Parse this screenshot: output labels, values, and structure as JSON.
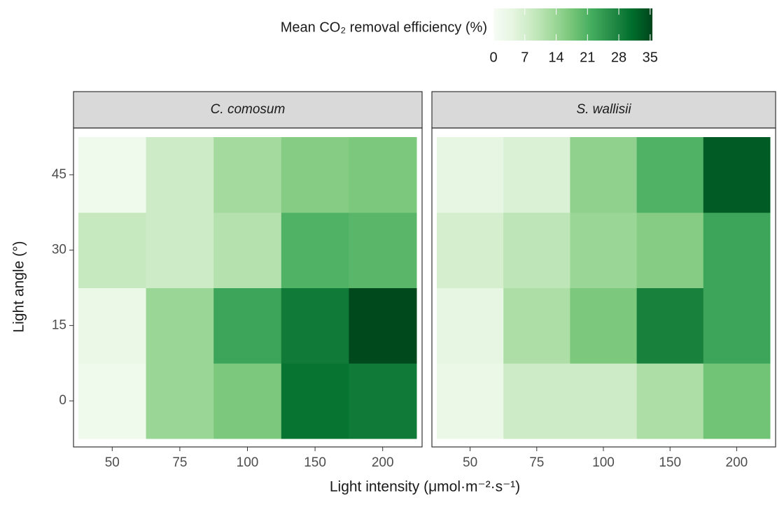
{
  "chart_data": {
    "type": "heatmap",
    "legend_title": "Mean CO₂ removal efficiency (%)",
    "x_label": "Light intensity (μmol·m⁻²·s⁻¹)",
    "y_label": "Light angle (°)",
    "x_categories": [
      "50",
      "75",
      "100",
      "150",
      "200"
    ],
    "y_categories": [
      "0",
      "15",
      "30",
      "45"
    ],
    "clim": [
      0,
      35.5
    ],
    "cticks": [
      0,
      7,
      14,
      21,
      28,
      35
    ],
    "colorscale": [
      "#f7fcf5",
      "#e5f5e0",
      "#c7e9c0",
      "#a1d99b",
      "#74c476",
      "#41ab5d",
      "#238b45",
      "#006d2c",
      "#00441b"
    ],
    "facets": [
      {
        "name": "C. comosum",
        "values": [
          [
            2,
            14,
            17,
            30,
            29
          ],
          [
            3,
            14,
            23,
            29,
            35
          ],
          [
            9,
            8,
            11,
            21,
            20
          ],
          [
            2,
            8,
            13,
            16,
            17
          ]
        ]
      },
      {
        "name": "S. wallisii",
        "values": [
          [
            3,
            8,
            8,
            12,
            18
          ],
          [
            4,
            12,
            17,
            28,
            23
          ],
          [
            7,
            10,
            14,
            16,
            23
          ],
          [
            4,
            6,
            15,
            21,
            33
          ]
        ]
      }
    ]
  }
}
